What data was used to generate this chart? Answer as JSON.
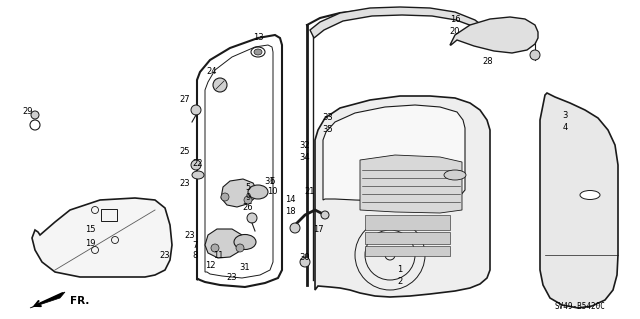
{
  "diagram_code": "SV49-B5420C",
  "background_color": "#ffffff",
  "line_color": "#1a1a1a",
  "fig_w": 6.4,
  "fig_h": 3.19,
  "dpi": 100
}
